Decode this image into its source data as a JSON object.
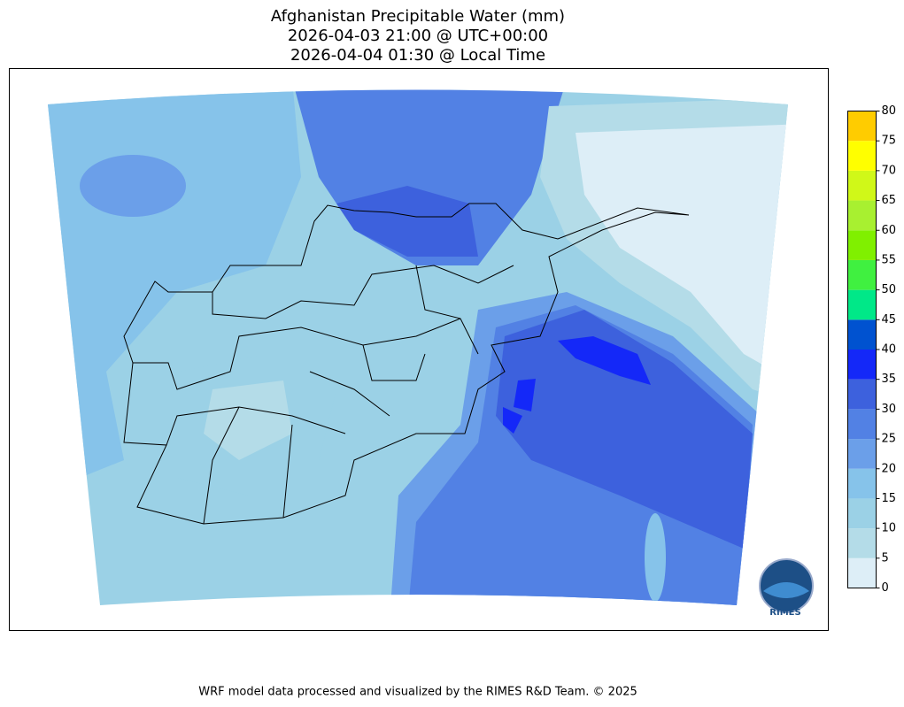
{
  "title": [
    "Afghanistan Precipitable Water (mm)",
    "2026-04-03 21:00 @ UTC+00:00",
    "2026-04-04 01:30 @ Local Time"
  ],
  "colorbar": {
    "ticks": [
      0,
      5,
      10,
      15,
      20,
      25,
      30,
      35,
      40,
      45,
      50,
      55,
      60,
      65,
      70,
      75,
      80
    ],
    "colors": [
      "#ddeef7",
      "#b4dce8",
      "#9bd1e6",
      "#86c3ea",
      "#6b9fe9",
      "#5281e4",
      "#3d61dd",
      "#1428f8",
      "#0052d0",
      "#00e888",
      "#40f040",
      "#80f000",
      "#a8f030",
      "#d0f818",
      "#ffff00",
      "#ffcc00"
    ]
  },
  "logo_text": "RIMES",
  "footer": "WRF model data processed and visualized by the RIMES R&D Team. © 2025"
}
